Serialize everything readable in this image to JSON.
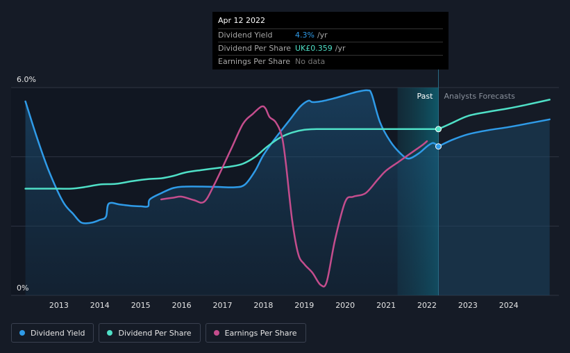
{
  "chart_data": {
    "type": "line",
    "ylim_label_top": "6.0%",
    "ylim_label_bottom": "0%",
    "ylim": [
      0,
      6
    ],
    "xlim": [
      2012.0,
      2025.0
    ],
    "x_ticks": [
      "2013",
      "2014",
      "2015",
      "2016",
      "2017",
      "2018",
      "2019",
      "2020",
      "2021",
      "2022",
      "2023",
      "2024"
    ],
    "past_label": "Past",
    "forecast_label": "Analysts Forecasts",
    "forecast_start": 2022.28,
    "shaded_past_start": 2021.28,
    "series": [
      {
        "name": "Dividend Yield",
        "color": "#2f9be8",
        "x": [
          2012.18,
          2012.45,
          2012.75,
          2013.1,
          2013.35,
          2013.55,
          2013.8,
          2014.0,
          2014.15,
          2014.22,
          2014.5,
          2014.8,
          2015.0,
          2015.18,
          2015.22,
          2015.5,
          2015.8,
          2016.1,
          2016.5,
          2016.9,
          2017.3,
          2017.55,
          2017.8,
          2018.0,
          2018.3,
          2018.6,
          2018.9,
          2019.1,
          2019.2,
          2019.4,
          2019.7,
          2020.0,
          2020.3,
          2020.55,
          2020.65,
          2020.85,
          2021.1,
          2021.35,
          2021.55,
          2021.8,
          2022.0,
          2022.15,
          2022.28
        ],
        "y": [
          5.6,
          4.6,
          3.6,
          2.7,
          2.35,
          2.1,
          2.1,
          2.18,
          2.27,
          2.65,
          2.62,
          2.58,
          2.57,
          2.57,
          2.77,
          2.95,
          3.1,
          3.14,
          3.14,
          3.13,
          3.12,
          3.2,
          3.6,
          4.05,
          4.55,
          5.0,
          5.45,
          5.62,
          5.58,
          5.6,
          5.68,
          5.78,
          5.88,
          5.92,
          5.8,
          5.0,
          4.45,
          4.1,
          3.95,
          4.1,
          4.3,
          4.4,
          4.3
        ]
      },
      {
        "name": "Dividend Per Share",
        "color": "#4fe0c7",
        "x": [
          2012.18,
          2012.6,
          2013.0,
          2013.3,
          2013.6,
          2014.0,
          2014.4,
          2014.8,
          2015.2,
          2015.5,
          2015.8,
          2016.1,
          2016.5,
          2016.9,
          2017.2,
          2017.5,
          2017.8,
          2018.1,
          2018.4,
          2018.7,
          2019.0,
          2019.3,
          2019.6,
          2020.0,
          2020.5,
          2021.0,
          2021.5,
          2022.0,
          2022.28
        ],
        "y": [
          3.08,
          3.08,
          3.08,
          3.08,
          3.12,
          3.2,
          3.22,
          3.3,
          3.36,
          3.38,
          3.45,
          3.55,
          3.62,
          3.68,
          3.72,
          3.8,
          4.0,
          4.3,
          4.55,
          4.7,
          4.78,
          4.8,
          4.8,
          4.8,
          4.8,
          4.8,
          4.8,
          4.8,
          4.8
        ]
      },
      {
        "name": "Earnings Per Share",
        "color": "#c44d8d",
        "x": [
          2015.5,
          2015.8,
          2016.0,
          2016.3,
          2016.55,
          2016.8,
          2017.2,
          2017.5,
          2017.75,
          2017.95,
          2018.05,
          2018.15,
          2018.3,
          2018.45,
          2018.55,
          2018.7,
          2018.85,
          2019.0,
          2019.2,
          2019.4,
          2019.55,
          2019.75,
          2020.0,
          2020.2,
          2020.5,
          2020.8,
          2021.0,
          2021.3,
          2021.6,
          2021.9,
          2022.0
        ],
        "y": [
          2.77,
          2.82,
          2.85,
          2.75,
          2.7,
          3.2,
          4.2,
          4.95,
          5.25,
          5.45,
          5.4,
          5.15,
          5.0,
          4.6,
          3.8,
          2.2,
          1.2,
          0.9,
          0.65,
          0.3,
          0.4,
          1.6,
          2.7,
          2.85,
          2.95,
          3.35,
          3.6,
          3.85,
          4.1,
          4.35,
          4.45
        ]
      }
    ],
    "forecast_series": [
      {
        "name": "Dividend Yield",
        "x": [
          2022.28,
          2022.6,
          2023.0,
          2023.5,
          2024.0,
          2024.5,
          2025.0
        ],
        "y": [
          4.3,
          4.48,
          4.65,
          4.77,
          4.86,
          4.97,
          5.08
        ]
      },
      {
        "name": "Dividend Per Share",
        "x": [
          2022.28,
          2022.6,
          2023.0,
          2023.5,
          2024.0,
          2024.5,
          2025.0
        ],
        "y": [
          4.8,
          4.97,
          5.18,
          5.3,
          5.4,
          5.52,
          5.65
        ]
      }
    ]
  },
  "tooltip": {
    "date": "Apr 12 2022",
    "rows": [
      {
        "label": "Dividend Yield",
        "value": "4.3%",
        "unit": "/yr"
      },
      {
        "label": "Dividend Per Share",
        "value": "UK£0.359",
        "unit": "/yr"
      },
      {
        "label": "Earnings Per Share",
        "value": "No data",
        "unit": ""
      }
    ]
  },
  "legend": [
    {
      "label": "Dividend Yield",
      "color": "#2f9be8"
    },
    {
      "label": "Dividend Per Share",
      "color": "#4fe0c7"
    },
    {
      "label": "Earnings Per Share",
      "color": "#c44d8d"
    }
  ],
  "colors": {
    "background": "#151b26",
    "past_shade": "#0f3a4a",
    "gridline": "#2e3542"
  }
}
